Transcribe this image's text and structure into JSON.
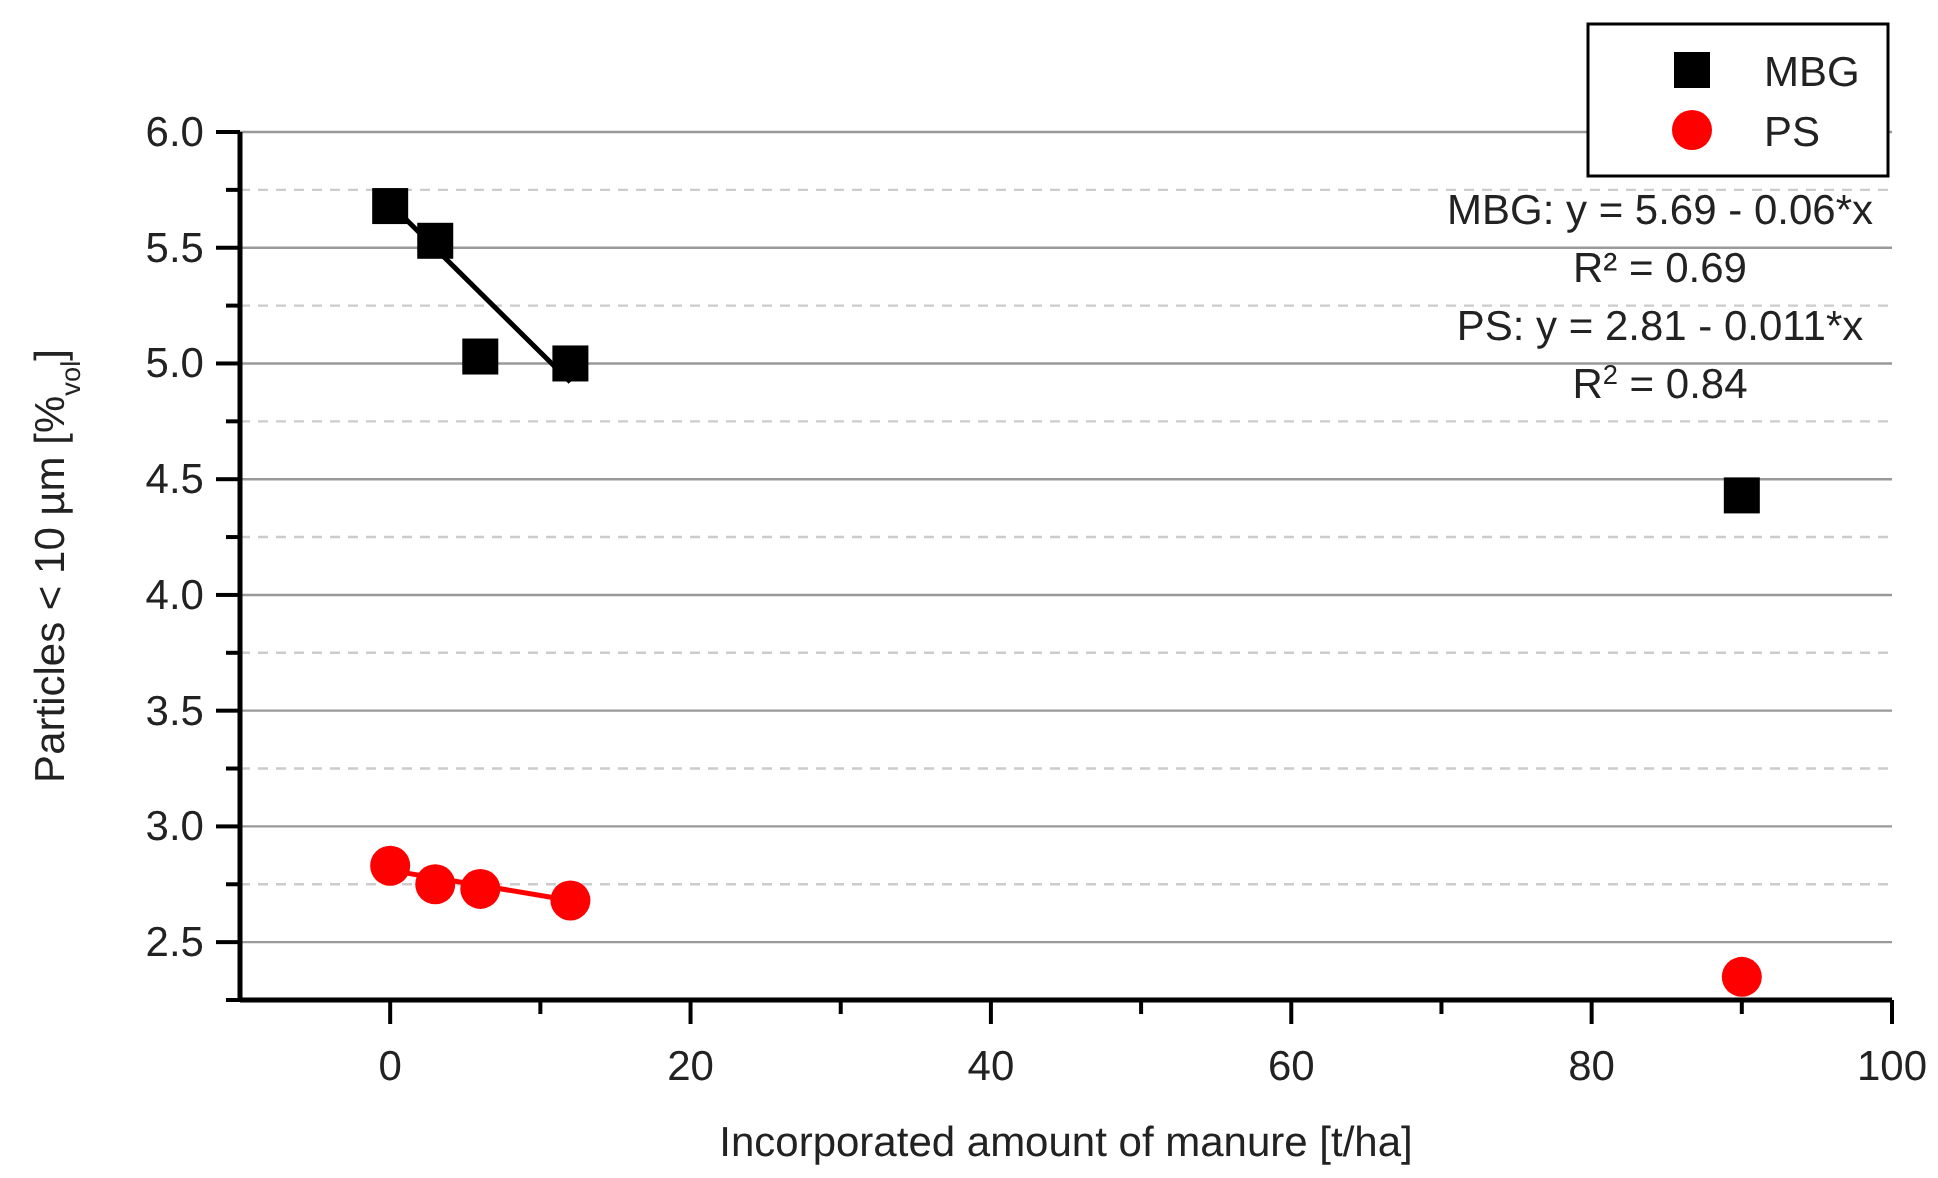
{
  "chart_data": {
    "type": "scatter",
    "xlabel": "Incorporated amount of manure [t/ha]",
    "ylabel": "Particles < 10 µm [%$_{vol}$]",
    "xlim": [
      -10,
      100
    ],
    "xticks": [
      0,
      {
        "value": 10,
        "label": null
      },
      20,
      {
        "value": 30,
        "label": null
      },
      40,
      {
        "value": 50,
        "label": null
      },
      60,
      {
        "value": 70,
        "label": null
      },
      80,
      {
        "value": 90,
        "label": null
      },
      100
    ],
    "ylim": [
      2.25,
      6.0
    ],
    "yticks": [
      {
        "value": 2.25,
        "label": null
      },
      2.5,
      {
        "value": 2.75,
        "label": null
      },
      "3.0",
      {
        "value": 3.25,
        "label": null
      },
      3.5,
      {
        "value": 3.75,
        "label": null
      },
      "4.0",
      {
        "value": 4.25,
        "label": null
      },
      4.5,
      {
        "value": 4.75,
        "label": null
      },
      "5.0",
      {
        "value": 5.25,
        "label": null
      },
      5.5,
      {
        "value": 5.75,
        "label": null
      },
      "6.0"
    ],
    "grid": "y",
    "legend": "top right",
    "series": [
      {
        "name": "MBG",
        "marker": "square",
        "color": "#000000",
        "x": [
          0,
          3,
          6,
          12,
          90
        ],
        "values": [
          5.68,
          5.53,
          5.03,
          5.0,
          4.43
        ]
      },
      {
        "name": "PS",
        "marker": "circle",
        "color": "#ff0000",
        "x": [
          0,
          3,
          6,
          12,
          90
        ],
        "values": [
          2.83,
          2.75,
          2.73,
          2.68,
          2.35
        ]
      },
      {
        "type": "line",
        "marker": "none",
        "color": "#000000",
        "x": [
          0,
          12
        ],
        "values": [
          5.69,
          4.92
        ]
      },
      {
        "type": "line",
        "marker": "none",
        "color": "#ff0000",
        "x": [
          0,
          12
        ],
        "values": [
          2.81,
          2.68
        ]
      }
    ],
    "annotations": [
      "MBG: y = 5.69 - 0.06*x",
      "R² = 0.69",
      "PS: y = 2.81 - 0.011*x",
      "R$^{2}$ = 0.84"
    ]
  }
}
